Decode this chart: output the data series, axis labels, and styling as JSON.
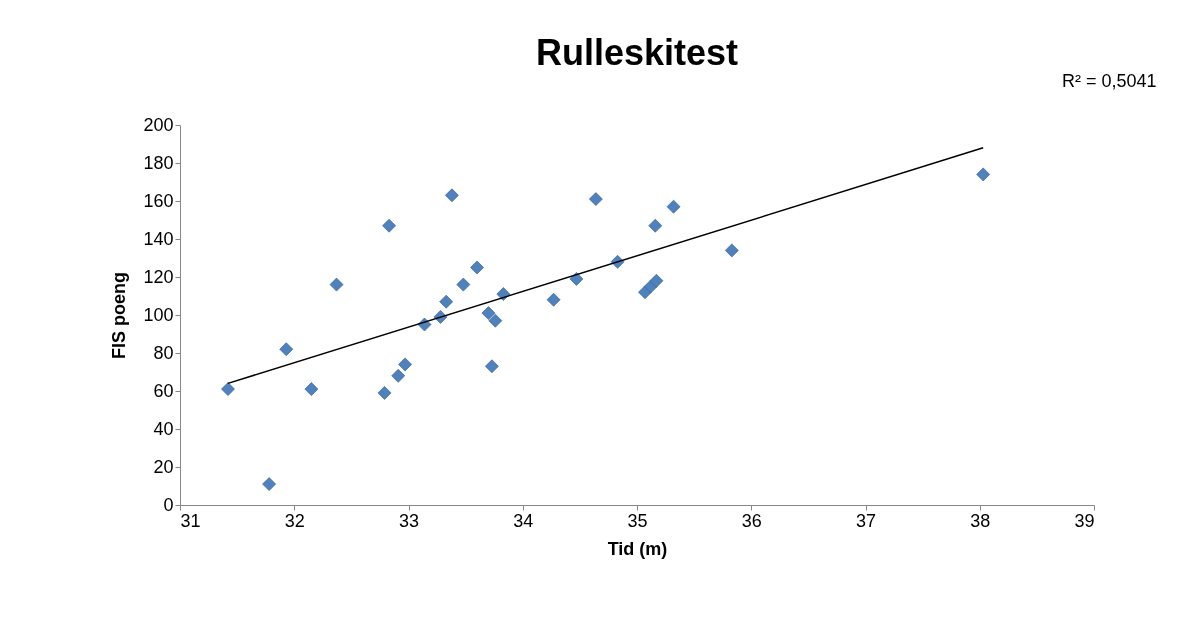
{
  "chart_data": {
    "type": "scatter",
    "title": "Rulleskitest",
    "xlabel": "Tid (m)",
    "ylabel": "FIS poeng",
    "annotations": [
      "R² = 0,5041"
    ],
    "xlim": [
      31,
      39
    ],
    "xticks": [
      31,
      32,
      33,
      34,
      35,
      36,
      37,
      38,
      39
    ],
    "ylim": [
      0,
      200
    ],
    "yticks": [
      0,
      20,
      40,
      60,
      80,
      100,
      120,
      140,
      160,
      180,
      200
    ],
    "grid": false,
    "marker": "diamond",
    "series": [
      {
        "color": "#4f81bd",
        "x": [
          31.42,
          31.78,
          31.93,
          32.15,
          32.37,
          32.79,
          32.83,
          32.91,
          32.97,
          33.14,
          33.28,
          33.33,
          33.38,
          33.48,
          33.6,
          33.7,
          33.73,
          33.76,
          33.83,
          34.27,
          34.47,
          34.64,
          34.83,
          35.07,
          35.12,
          35.16,
          35.17,
          35.32,
          35.83,
          38.03
        ],
        "values": [
          61,
          11,
          82,
          61,
          116,
          59,
          147,
          68,
          74,
          95,
          99,
          107,
          163,
          116,
          125,
          101,
          73,
          97,
          111,
          108,
          119,
          161,
          128,
          112,
          115,
          147,
          118,
          157,
          134,
          174
        ]
      },
      {
        "type": "line",
        "marker": "none",
        "color": "#000000",
        "x": [
          31.42,
          38.03
        ],
        "values": [
          64,
          188
        ]
      }
    ]
  }
}
